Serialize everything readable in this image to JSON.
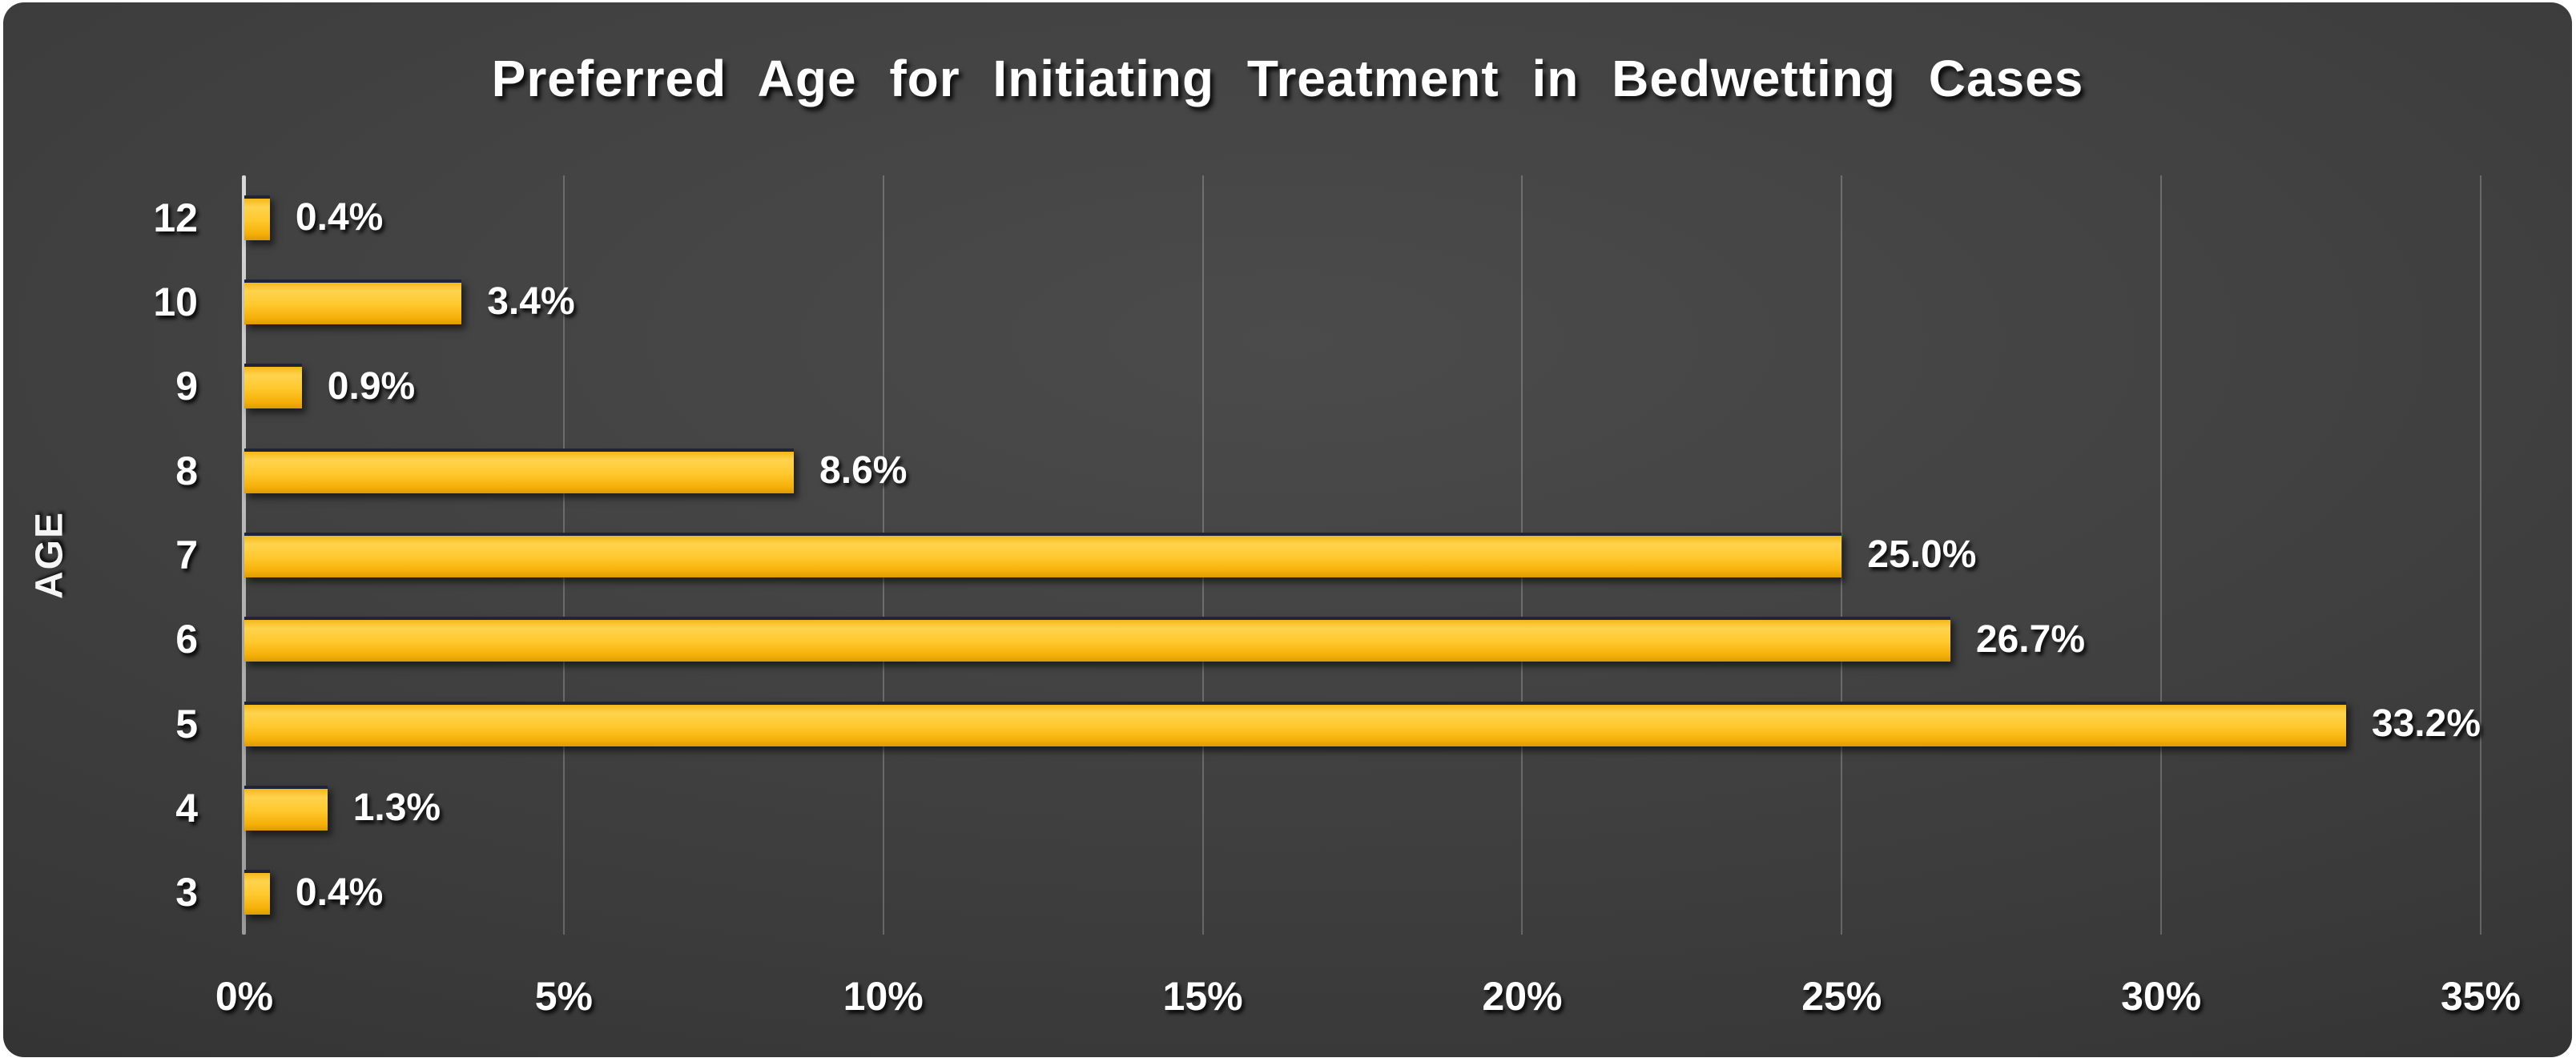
{
  "chart_data": {
    "type": "bar",
    "orientation": "horizontal",
    "title": "Preferred Age for Initiating Treatment in Bedwetting Cases",
    "xlabel": "",
    "ylabel": "AGE",
    "categories": [
      "12",
      "10",
      "9",
      "8",
      "7",
      "6",
      "5",
      "4",
      "3"
    ],
    "values": [
      0.4,
      3.4,
      0.9,
      8.6,
      25.0,
      26.7,
      33.2,
      1.3,
      0.4
    ],
    "value_labels": [
      "0.4%",
      "3.4%",
      "0.9%",
      "8.6%",
      "25.0%",
      "26.7%",
      "33.2%",
      "1.3%",
      "0.4%"
    ],
    "x_tick_values": [
      0,
      5,
      10,
      15,
      20,
      25,
      30,
      35
    ],
    "x_tick_labels": [
      "0%",
      "5%",
      "10%",
      "15%",
      "20%",
      "25%",
      "30%",
      "35%"
    ],
    "xlim": [
      0,
      35
    ],
    "grid": "vertical-on",
    "legend": "none",
    "colors": {
      "bar": "#ffc92e",
      "bar_top_edge": "#1f2438",
      "background_center": "#4b4b4b",
      "background_edge": "#202020",
      "page_background": "#ffffff",
      "text": "#ffffff",
      "gridline": "rgba(255,255,255,0.22)",
      "axis_line": "#b5b5b5"
    }
  }
}
